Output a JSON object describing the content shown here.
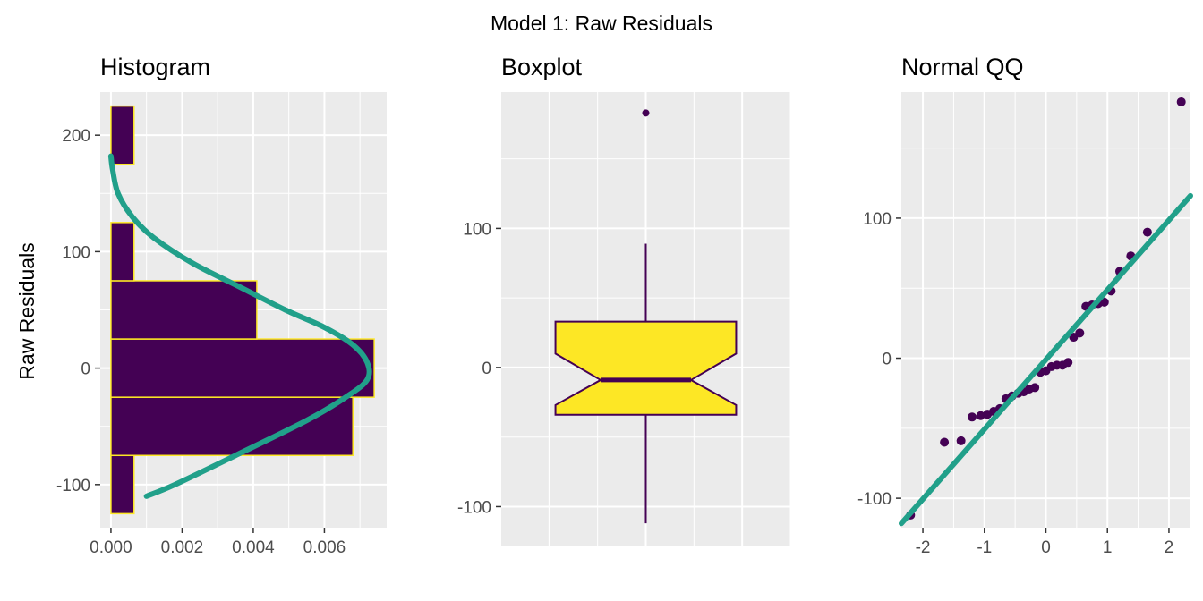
{
  "figure": {
    "title": "Model 1: Raw Residuals",
    "ylabel": "Raw Residuals"
  },
  "colors": {
    "panel_bg": "#EBEBEB",
    "grid": "#FFFFFF",
    "fill_dark": "#440154",
    "fill_yellow": "#FDE725",
    "curve": "#21A08A"
  },
  "chart_data": [
    {
      "type": "histogram",
      "title": "Histogram",
      "orientation": "horizontal",
      "xlim": [
        -0.0003,
        0.00775
      ],
      "ylim": [
        -137,
        237
      ],
      "x_ticks": [
        0,
        0.002,
        0.004,
        0.006
      ],
      "x_tick_labels": [
        "0.000",
        "0.002",
        "0.004",
        "0.006"
      ],
      "y_ticks": [
        -100,
        0,
        100,
        200
      ],
      "y_tick_labels": [
        "-100",
        "0",
        "100",
        "200"
      ],
      "bin_width": 50,
      "bins": [
        {
          "center": -100,
          "density": 0.00065
        },
        {
          "center": -50,
          "density": 0.0068
        },
        {
          "center": 0,
          "density": 0.0074
        },
        {
          "center": 50,
          "density": 0.0041
        },
        {
          "center": 100,
          "density": 0.00065
        },
        {
          "center": 150,
          "density": 0
        },
        {
          "center": 200,
          "density": 0.00065
        }
      ],
      "density_curve": [
        {
          "x": 0.001,
          "y": -110
        },
        {
          "x": 0.0018,
          "y": -100
        },
        {
          "x": 0.0035,
          "y": -75
        },
        {
          "x": 0.0055,
          "y": -45
        },
        {
          "x": 0.0066,
          "y": -25
        },
        {
          "x": 0.0072,
          "y": -10
        },
        {
          "x": 0.0072,
          "y": 5
        },
        {
          "x": 0.0068,
          "y": 20
        },
        {
          "x": 0.006,
          "y": 35
        },
        {
          "x": 0.0049,
          "y": 50
        },
        {
          "x": 0.0036,
          "y": 70
        },
        {
          "x": 0.0023,
          "y": 90
        },
        {
          "x": 0.0012,
          "y": 112
        },
        {
          "x": 0.0006,
          "y": 130
        },
        {
          "x": 0.0002,
          "y": 150
        },
        {
          "x": 5e-05,
          "y": 170
        },
        {
          "x": 0,
          "y": 182
        }
      ]
    },
    {
      "type": "boxplot",
      "title": "Boxplot",
      "notched": true,
      "ylim": [
        -128,
        198
      ],
      "y_ticks": [
        -100,
        0,
        100
      ],
      "y_tick_labels": [
        "-100",
        "0",
        "100"
      ],
      "whisker_low": -112,
      "q1": -34,
      "median": -9,
      "q3": 33,
      "whisker_high": 89,
      "notch_low": -27,
      "notch_high": 10,
      "outliers": [
        183
      ]
    },
    {
      "type": "scatter",
      "title": "Normal QQ",
      "xlim": [
        -2.35,
        2.35
      ],
      "ylim": [
        -121,
        190
      ],
      "x_ticks": [
        -2,
        -1,
        0,
        1,
        2
      ],
      "x_tick_labels": [
        "-2",
        "-1",
        "0",
        "1",
        "2"
      ],
      "y_ticks": [
        -100,
        0,
        100
      ],
      "y_tick_labels": [
        "-100",
        "0",
        "100"
      ],
      "reference_line": [
        {
          "x": -2.35,
          "y": -118
        },
        {
          "x": 2.35,
          "y": 116
        }
      ],
      "points": [
        {
          "x": -2.2,
          "y": -112
        },
        {
          "x": -1.65,
          "y": -60
        },
        {
          "x": -1.38,
          "y": -59
        },
        {
          "x": -1.2,
          "y": -42
        },
        {
          "x": -1.06,
          "y": -41
        },
        {
          "x": -0.95,
          "y": -40
        },
        {
          "x": -0.85,
          "y": -38
        },
        {
          "x": -0.75,
          "y": -36
        },
        {
          "x": -0.65,
          "y": -29
        },
        {
          "x": -0.55,
          "y": -27
        },
        {
          "x": -0.45,
          "y": -25
        },
        {
          "x": -0.36,
          "y": -24
        },
        {
          "x": -0.27,
          "y": -22
        },
        {
          "x": -0.18,
          "y": -21
        },
        {
          "x": -0.09,
          "y": -10
        },
        {
          "x": 0.0,
          "y": -9
        },
        {
          "x": 0.09,
          "y": -6
        },
        {
          "x": 0.18,
          "y": -5
        },
        {
          "x": 0.27,
          "y": -5
        },
        {
          "x": 0.36,
          "y": -3
        },
        {
          "x": 0.45,
          "y": 15
        },
        {
          "x": 0.55,
          "y": 18
        },
        {
          "x": 0.65,
          "y": 37
        },
        {
          "x": 0.75,
          "y": 38
        },
        {
          "x": 0.85,
          "y": 39
        },
        {
          "x": 0.95,
          "y": 40
        },
        {
          "x": 1.06,
          "y": 48
        },
        {
          "x": 1.2,
          "y": 62
        },
        {
          "x": 1.38,
          "y": 73
        },
        {
          "x": 1.65,
          "y": 90
        },
        {
          "x": 2.2,
          "y": 183
        }
      ]
    }
  ]
}
